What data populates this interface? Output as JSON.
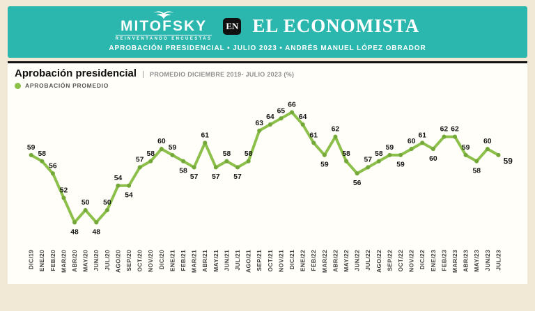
{
  "header": {
    "logo_text": "MITOFSKY",
    "logo_tagline": "REINVENTANDO ENCUESTAS",
    "en_badge": "EN",
    "publication": "EL ECONOMISTA",
    "subtitle": "APROBACIÓN PRESIDENCIAL • JULIO 2023 • ANDRÉS MANUEL LÓPEZ OBRADOR"
  },
  "card": {
    "title": "Aprobación presidencial",
    "subtitle": "PROMEDIO DICIEMBRE 2019- JULIO 2023 (%)",
    "legend": "APROBACIÓN PROMEDIO"
  },
  "colors": {
    "teal": "#2cb7ae",
    "line": "#8dc04b",
    "marker": "#74a839",
    "page_bg": "#f1e9d5",
    "card_bg": "#fffef8"
  },
  "chart_data": {
    "type": "line",
    "title": "Aprobación presidencial",
    "subtitle": "PROMEDIO DICIEMBRE 2019- JULIO 2023 (%)",
    "series_name": "APROBACIÓN PROMEDIO",
    "unit": "%",
    "xlabel": "",
    "ylabel": "",
    "ylim": [
      46,
      68
    ],
    "grid": false,
    "legend_position": "top-left",
    "last_label_bold": true,
    "categories": [
      "DIC/19",
      "ENE/20",
      "FEB/20",
      "MAR/20",
      "ABR/20",
      "MAY/20",
      "JUN/20",
      "JUL/20",
      "AGO/20",
      "SEP/20",
      "OCT/20",
      "NOV/20",
      "DIC/20",
      "ENE/21",
      "FEB/21",
      "MAR/21",
      "ABR/21",
      "MAY/21",
      "JUN/21",
      "JUL/21",
      "AGO/21",
      "SEP/21",
      "OCT/21",
      "NOV/21",
      "DIC/21",
      "ENE/22",
      "FEB/22",
      "MAR/22",
      "ABR/22",
      "MAY/22",
      "JUN/22",
      "JUL/22",
      "AGO/22",
      "SEP/22",
      "OCT/22",
      "NOV/22",
      "DIC/22",
      "ENE/23",
      "FEB/23",
      "MAR/23",
      "ABR/23",
      "MAY/23",
      "JUN/23",
      "JUL/23"
    ],
    "values": [
      59,
      58,
      56,
      52,
      48,
      50,
      48,
      50,
      54,
      54,
      57,
      58,
      60,
      59,
      58,
      57,
      61,
      57,
      58,
      57,
      58,
      63,
      64,
      65,
      66,
      64,
      61,
      59,
      62,
      58,
      56,
      57,
      58,
      59,
      59,
      60,
      61,
      60,
      62,
      62,
      59,
      58,
      60,
      59
    ],
    "label_side": [
      "a",
      "a",
      "a",
      "a",
      "b",
      "a",
      "b",
      "a",
      "a",
      "b",
      "a",
      "a",
      "a",
      "a",
      "b",
      "b",
      "a",
      "b",
      "a",
      "b",
      "a",
      "a",
      "a",
      "a",
      "a",
      "a",
      "a",
      "b",
      "a",
      "a",
      "b",
      "a",
      "a",
      "a",
      "b",
      "a",
      "a",
      "b",
      "a",
      "a",
      "a",
      "b",
      "a",
      "b"
    ]
  }
}
